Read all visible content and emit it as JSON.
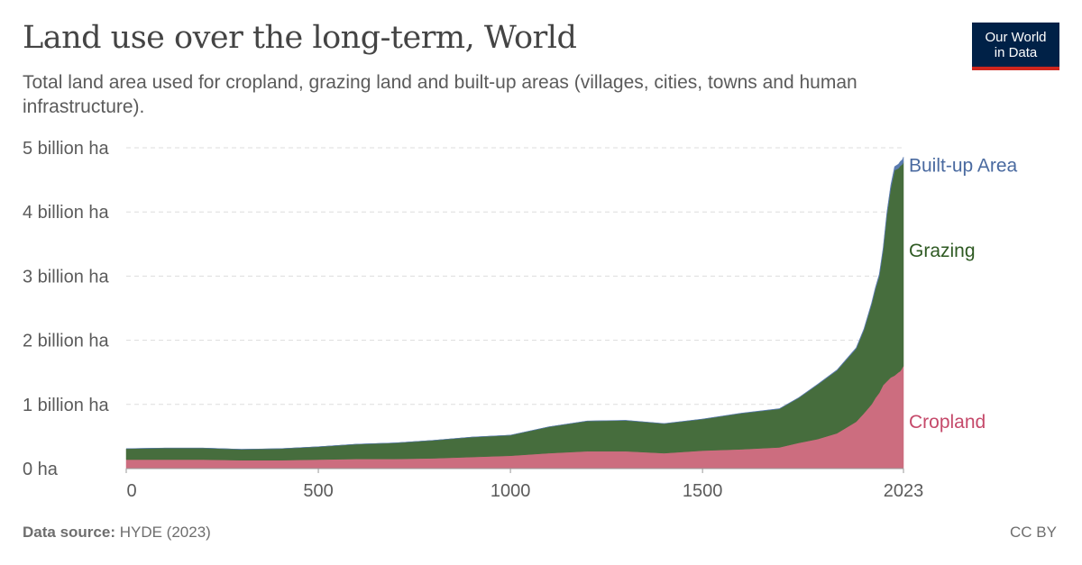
{
  "header": {
    "title": "Land use over the long-term, World",
    "subtitle": "Total land area used for cropland, grazing land and built-up areas (villages, cities, towns and human infrastructure).",
    "logo_line1": "Our World",
    "logo_line2": "in Data"
  },
  "footer": {
    "source_label": "Data source:",
    "source_value": "HYDE (2023)",
    "license": "CC BY"
  },
  "colors": {
    "cropland": "#cc6d7f",
    "grazing": "#466d3d",
    "built_up": "#5a7bb0",
    "cropland_label": "#c5496a",
    "grazing_label": "#2f5a23",
    "built_up_label": "#4a6aa0",
    "grid": "#dddddd",
    "axis_text": "#5b5b5b"
  },
  "chart_data": {
    "type": "area",
    "stacked": true,
    "x_ticks": [
      0,
      500,
      1000,
      1500,
      2023
    ],
    "x_tick_labels": [
      "0",
      "500",
      "1000",
      "1500",
      "2023"
    ],
    "xlim": [
      0,
      2023
    ],
    "y_ticks": [
      0,
      1,
      2,
      3,
      4,
      5
    ],
    "y_tick_labels": [
      "0 ha",
      "1 billion ha",
      "2 billion ha",
      "3 billion ha",
      "4 billion ha",
      "5 billion ha"
    ],
    "ylim": [
      0,
      5
    ],
    "grid": "horizontal dashed",
    "legend": "inline labels at right end",
    "x": [
      0,
      100,
      200,
      300,
      400,
      500,
      600,
      700,
      800,
      900,
      1000,
      1100,
      1200,
      1300,
      1400,
      1500,
      1600,
      1700,
      1750,
      1800,
      1850,
      1900,
      1920,
      1940,
      1950,
      1960,
      1970,
      1980,
      1990,
      2000,
      2010,
      2015,
      2020,
      2023
    ],
    "series": [
      {
        "name": "Cropland",
        "values": [
          0.14,
          0.14,
          0.14,
          0.13,
          0.13,
          0.14,
          0.15,
          0.15,
          0.16,
          0.18,
          0.2,
          0.24,
          0.27,
          0.27,
          0.24,
          0.28,
          0.3,
          0.33,
          0.4,
          0.46,
          0.55,
          0.73,
          0.86,
          1.0,
          1.1,
          1.18,
          1.3,
          1.36,
          1.42,
          1.45,
          1.5,
          1.52,
          1.57,
          1.6
        ]
      },
      {
        "name": "Grazing",
        "values": [
          0.17,
          0.18,
          0.18,
          0.17,
          0.18,
          0.2,
          0.23,
          0.25,
          0.28,
          0.31,
          0.32,
          0.41,
          0.47,
          0.48,
          0.46,
          0.49,
          0.56,
          0.6,
          0.7,
          0.85,
          0.98,
          1.14,
          1.3,
          1.56,
          1.7,
          1.82,
          2.1,
          2.6,
          2.95,
          3.2,
          3.18,
          3.2,
          3.17,
          3.18
        ]
      },
      {
        "name": "Built-up Area",
        "values": [
          0.001,
          0.001,
          0.001,
          0.001,
          0.001,
          0.001,
          0.001,
          0.001,
          0.001,
          0.002,
          0.002,
          0.002,
          0.003,
          0.003,
          0.003,
          0.003,
          0.004,
          0.005,
          0.006,
          0.008,
          0.01,
          0.015,
          0.018,
          0.022,
          0.025,
          0.03,
          0.036,
          0.042,
          0.05,
          0.058,
          0.066,
          0.07,
          0.074,
          0.076
        ]
      }
    ]
  }
}
